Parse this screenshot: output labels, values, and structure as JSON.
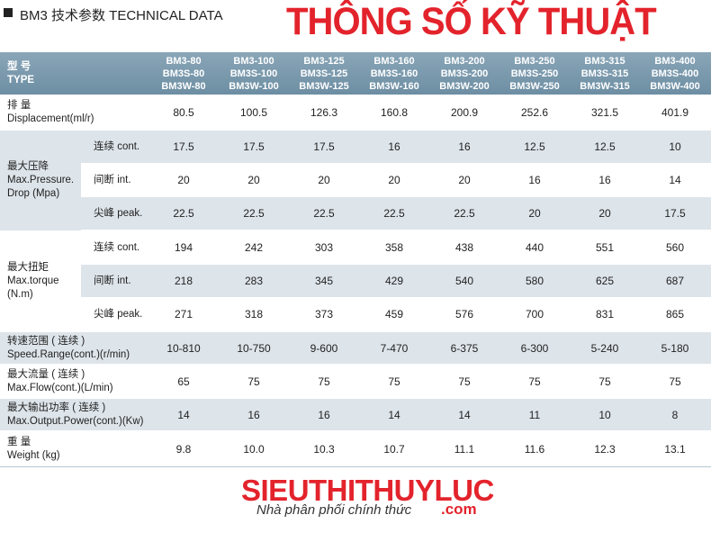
{
  "header": {
    "section_title": "BM3 技术参数 TECHNICAL DATA",
    "brand_title": "THÔNG SỐ KỸ THUẬT"
  },
  "table": {
    "type_label": [
      "型 号",
      "TYPE"
    ],
    "models": [
      [
        "BM3-80",
        "BM3S-80",
        "BM3W-80"
      ],
      [
        "BM3-100",
        "BM3S-100",
        "BM3W-100"
      ],
      [
        "BM3-125",
        "BM3S-125",
        "BM3W-125"
      ],
      [
        "BM3-160",
        "BM3S-160",
        "BM3W-160"
      ],
      [
        "BM3-200",
        "BM3S-200",
        "BM3W-200"
      ],
      [
        "BM3-250",
        "BM3S-250",
        "BM3W-250"
      ],
      [
        "BM3-315",
        "BM3S-315",
        "BM3W-315"
      ],
      [
        "BM3-400",
        "BM3S-400",
        "BM3W-400"
      ]
    ],
    "groups": [
      {
        "label": [
          "排 量",
          "Displacement(ml/r)"
        ],
        "values": [
          "80.5",
          "100.5",
          "126.3",
          "160.8",
          "200.9",
          "252.6",
          "321.5",
          "401.9"
        ]
      },
      {
        "label": [
          "最大压降",
          "Max.Pressure.",
          "Drop  (Mpa)"
        ],
        "rows": [
          {
            "label": "连续 cont.",
            "values": [
              "17.5",
              "17.5",
              "17.5",
              "16",
              "16",
              "12.5",
              "12.5",
              "10"
            ]
          },
          {
            "label": "间断 int.",
            "values": [
              "20",
              "20",
              "20",
              "20",
              "20",
              "16",
              "16",
              "14"
            ]
          },
          {
            "label": "尖峰 peak.",
            "values": [
              "22.5",
              "22.5",
              "22.5",
              "22.5",
              "22.5",
              "20",
              "20",
              "17.5"
            ]
          }
        ]
      },
      {
        "label": [
          "最大扭矩",
          "Max.torque",
          "(N.m)"
        ],
        "rows": [
          {
            "label": "连续 cont.",
            "values": [
              "194",
              "242",
              "303",
              "358",
              "438",
              "440",
              "551",
              "560"
            ]
          },
          {
            "label": "间断 int.",
            "values": [
              "218",
              "283",
              "345",
              "429",
              "540",
              "580",
              "625",
              "687"
            ]
          },
          {
            "label": "尖峰 peak.",
            "values": [
              "271",
              "318",
              "373",
              "459",
              "576",
              "700",
              "831",
              "865"
            ]
          }
        ]
      },
      {
        "label": [
          "转速范围 ( 连续 )",
          "Speed.Range(cont.)(r/min)"
        ],
        "values": [
          "10-810",
          "10-750",
          "9-600",
          "7-470",
          "6-375",
          "6-300",
          "5-240",
          "5-180"
        ]
      },
      {
        "label": [
          "最大流量 ( 连续 )",
          "Max.Flow(cont.)(L/min)"
        ],
        "values": [
          "65",
          "75",
          "75",
          "75",
          "75",
          "75",
          "75",
          "75"
        ]
      },
      {
        "label": [
          "最大输出功率 ( 连续 )",
          "Max.Output.Power(cont.)(Kw)"
        ],
        "values": [
          "14",
          "16",
          "16",
          "14",
          "14",
          "11",
          "10",
          "8"
        ]
      },
      {
        "label": [
          "重  量",
          "Weight (kg)"
        ],
        "values": [
          "9.8",
          "10.0",
          "10.3",
          "10.7",
          "11.1",
          "11.6",
          "12.3",
          "13.1"
        ]
      }
    ]
  },
  "footer": {
    "brand": "SIEUTHITHUYLUC",
    "tagline": "Nhà phân phối chính thức",
    "domain": ".com"
  }
}
